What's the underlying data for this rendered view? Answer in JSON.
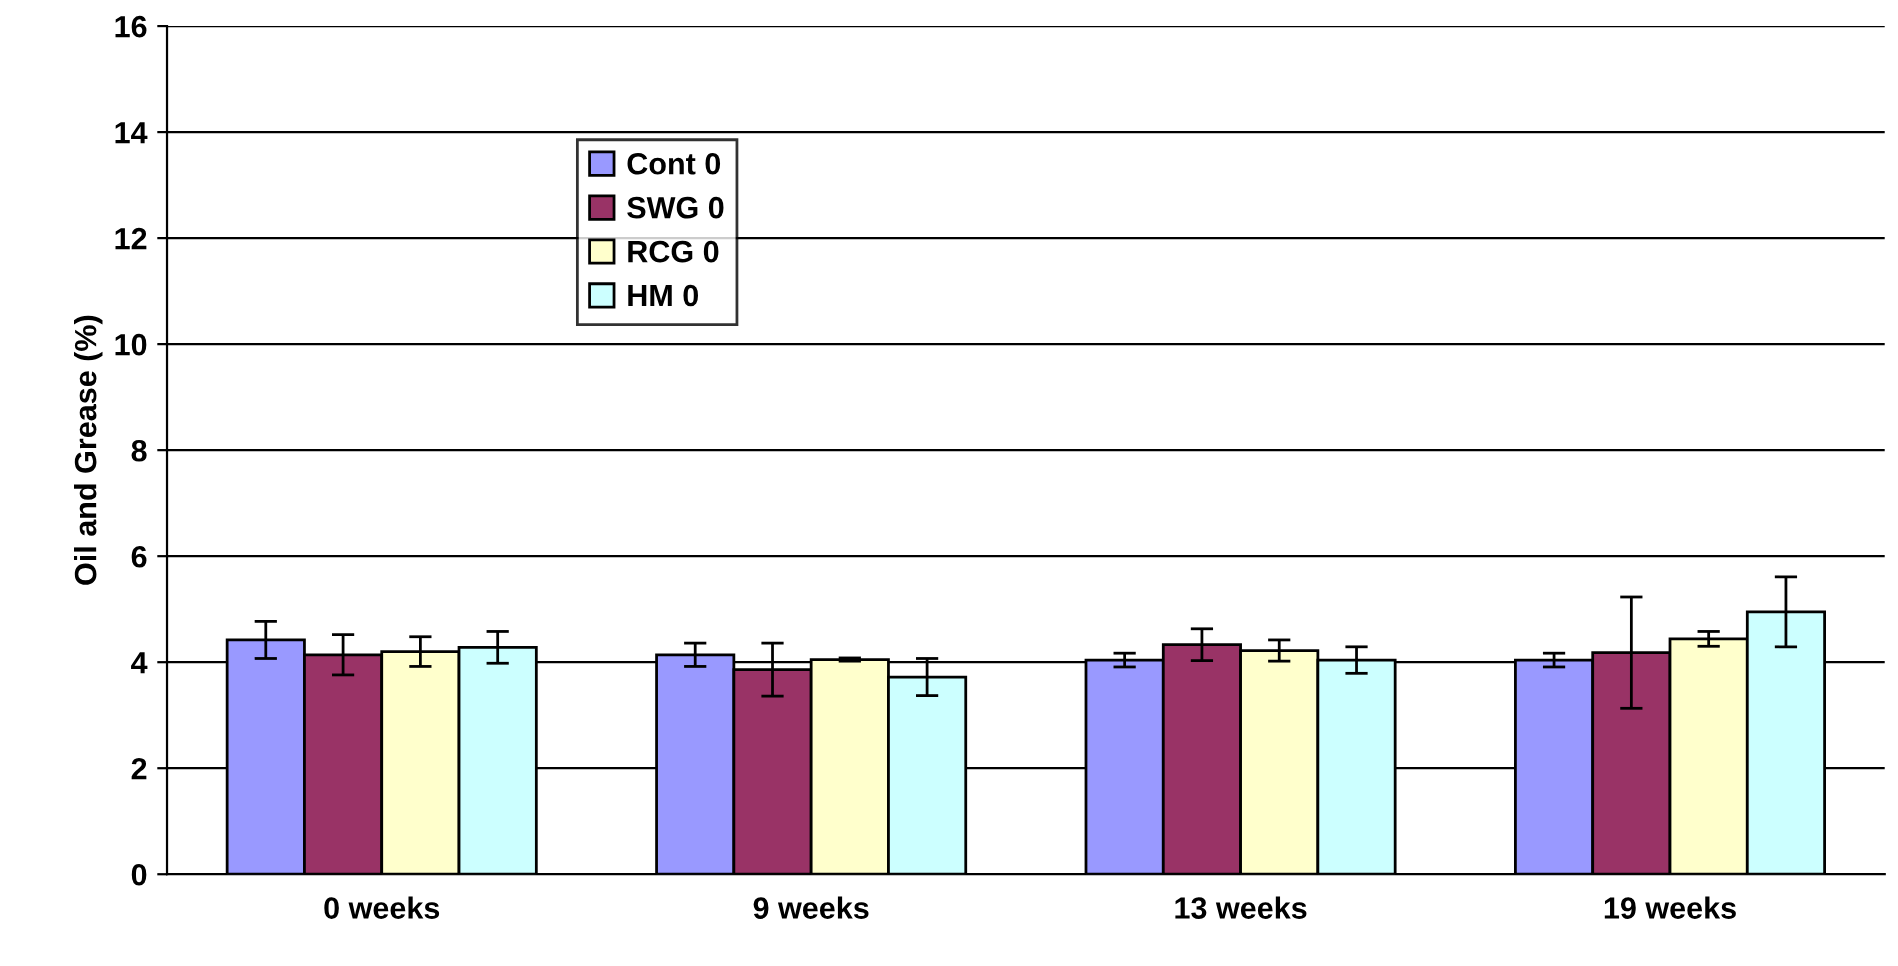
{
  "chart_data": {
    "type": "bar",
    "ylabel": "Oil and Grease (%)",
    "categories": [
      "0 weeks",
      "9 weeks",
      "13 weeks",
      "19 weeks"
    ],
    "series": [
      {
        "name": "Cont 0",
        "color": "#9999ff",
        "values": [
          4.42,
          4.14,
          4.04,
          4.04
        ],
        "errors": [
          0.35,
          0.22,
          0.13,
          0.13
        ]
      },
      {
        "name": "SWG 0",
        "color": "#993366",
        "values": [
          4.14,
          3.86,
          4.33,
          4.18
        ],
        "errors": [
          0.38,
          0.5,
          0.3,
          1.05
        ]
      },
      {
        "name": "RCG 0",
        "color": "#ffffcc",
        "values": [
          4.2,
          4.05,
          4.22,
          4.44
        ],
        "errors": [
          0.28,
          0.03,
          0.2,
          0.14
        ]
      },
      {
        "name": "HM 0",
        "color": "#ccffff",
        "values": [
          4.28,
          3.72,
          4.04,
          4.95
        ],
        "errors": [
          0.3,
          0.35,
          0.25,
          0.66
        ]
      }
    ],
    "ylim": [
      0,
      16
    ],
    "yticks": [
      0,
      2,
      4,
      6,
      8,
      10,
      12,
      14,
      16
    ],
    "grid": "y",
    "legend": "top"
  }
}
